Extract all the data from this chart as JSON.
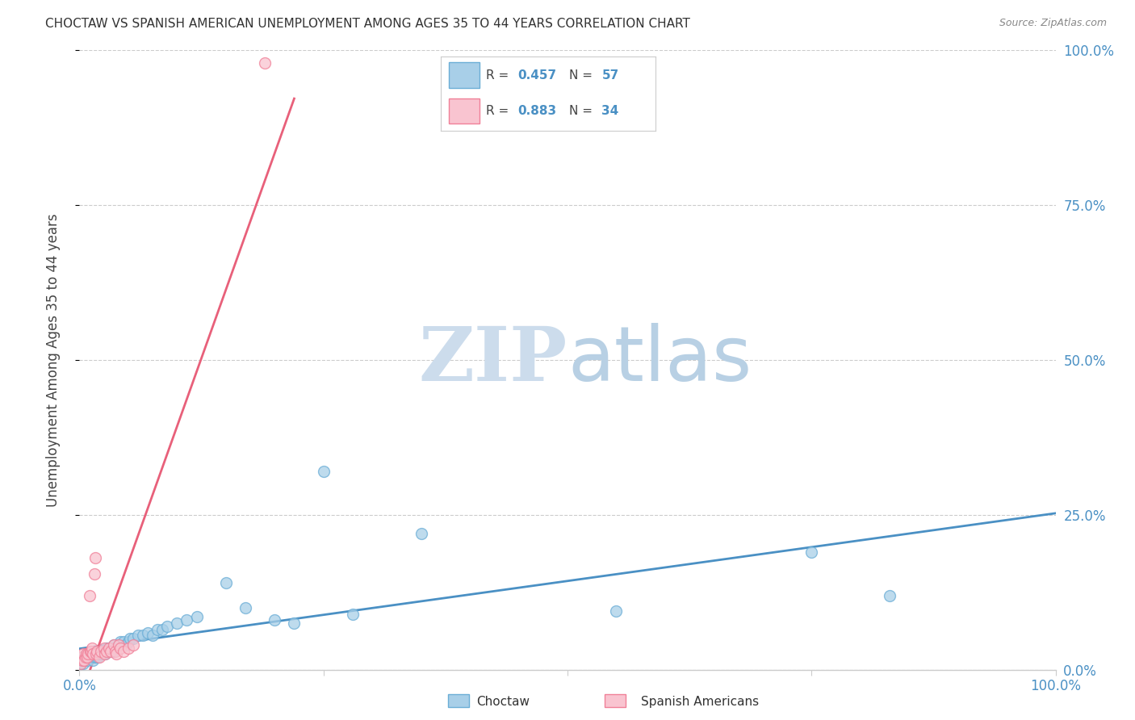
{
  "title": "CHOCTAW VS SPANISH AMERICAN UNEMPLOYMENT AMONG AGES 35 TO 44 YEARS CORRELATION CHART",
  "source": "Source: ZipAtlas.com",
  "ylabel": "Unemployment Among Ages 35 to 44 years",
  "choctaw_R": 0.457,
  "choctaw_N": 57,
  "spanish_R": 0.883,
  "spanish_N": 34,
  "choctaw_color": "#a8cfe8",
  "choctaw_edge": "#6baed6",
  "spanish_color": "#f9c4d0",
  "spanish_edge": "#f08098",
  "trendline_choctaw": "#4a90c4",
  "trendline_spanish": "#e8607a",
  "watermark_zip": "#cce0f0",
  "watermark_atlas": "#b8d4e8",
  "background_color": "#ffffff",
  "grid_color": "#cccccc",
  "right_tick_color": "#4a90c4",
  "bottom_tick_color": "#4a90c4",
  "choctaw_x": [
    0.001,
    0.002,
    0.003,
    0.004,
    0.005,
    0.006,
    0.007,
    0.008,
    0.009,
    0.01,
    0.011,
    0.012,
    0.013,
    0.014,
    0.015,
    0.016,
    0.017,
    0.018,
    0.019,
    0.02,
    0.022,
    0.024,
    0.025,
    0.026,
    0.028,
    0.03,
    0.032,
    0.034,
    0.035,
    0.037,
    0.04,
    0.042,
    0.045,
    0.048,
    0.05,
    0.052,
    0.055,
    0.06,
    0.065,
    0.07,
    0.075,
    0.08,
    0.085,
    0.09,
    0.1,
    0.11,
    0.12,
    0.15,
    0.17,
    0.2,
    0.22,
    0.25,
    0.28,
    0.35,
    0.55,
    0.75,
    0.83
  ],
  "choctaw_y": [
    0.01,
    0.015,
    0.02,
    0.01,
    0.015,
    0.02,
    0.025,
    0.015,
    0.02,
    0.02,
    0.025,
    0.02,
    0.025,
    0.015,
    0.02,
    0.025,
    0.02,
    0.025,
    0.02,
    0.025,
    0.03,
    0.025,
    0.03,
    0.025,
    0.035,
    0.03,
    0.035,
    0.03,
    0.04,
    0.035,
    0.04,
    0.045,
    0.045,
    0.04,
    0.045,
    0.05,
    0.05,
    0.055,
    0.055,
    0.06,
    0.055,
    0.065,
    0.065,
    0.07,
    0.075,
    0.08,
    0.085,
    0.14,
    0.1,
    0.08,
    0.075,
    0.32,
    0.09,
    0.22,
    0.095,
    0.19,
    0.12
  ],
  "spanish_x": [
    0.001,
    0.002,
    0.003,
    0.004,
    0.005,
    0.006,
    0.007,
    0.008,
    0.009,
    0.01,
    0.011,
    0.012,
    0.013,
    0.014,
    0.015,
    0.016,
    0.017,
    0.018,
    0.02,
    0.022,
    0.025,
    0.026,
    0.028,
    0.03,
    0.032,
    0.035,
    0.037,
    0.038,
    0.04,
    0.042,
    0.045,
    0.05,
    0.055,
    0.19
  ],
  "spanish_y": [
    0.01,
    0.02,
    0.015,
    0.025,
    0.015,
    0.02,
    0.025,
    0.02,
    0.025,
    0.12,
    0.03,
    0.03,
    0.035,
    0.025,
    0.155,
    0.18,
    0.025,
    0.03,
    0.02,
    0.03,
    0.035,
    0.025,
    0.03,
    0.035,
    0.03,
    0.04,
    0.03,
    0.025,
    0.04,
    0.035,
    0.03,
    0.035,
    0.04,
    0.98
  ],
  "xlim": [
    0,
    1.0
  ],
  "ylim": [
    0,
    1.0
  ],
  "xticks": [
    0,
    0.25,
    0.5,
    0.75,
    1.0
  ],
  "yticks": [
    0,
    0.25,
    0.5,
    0.75,
    1.0
  ],
  "ytick_labels_right": [
    "0.0%",
    "25.0%",
    "50.0%",
    "75.0%",
    "100.0%"
  ],
  "xtick_labels_bottom": [
    "0.0%",
    "",
    "",
    "",
    "100.0%"
  ]
}
